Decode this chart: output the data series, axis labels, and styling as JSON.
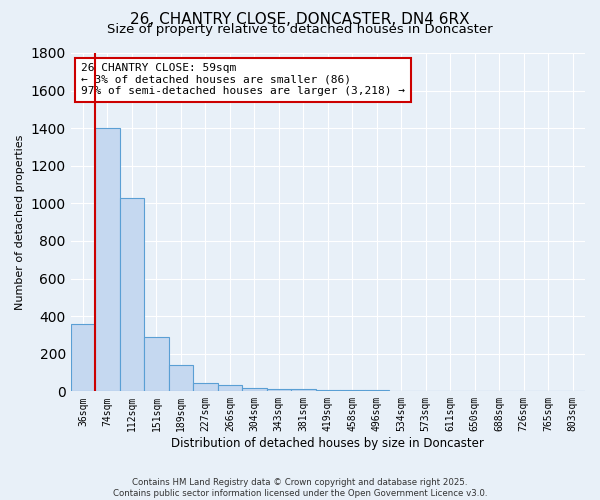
{
  "title": "26, CHANTRY CLOSE, DONCASTER, DN4 6RX",
  "subtitle": "Size of property relative to detached houses in Doncaster",
  "xlabel": "Distribution of detached houses by size in Doncaster",
  "ylabel": "Number of detached properties",
  "bar_values": [
    360,
    1400,
    1030,
    290,
    140,
    45,
    35,
    20,
    15,
    10,
    8,
    6,
    5,
    4,
    3,
    3,
    2,
    2,
    1,
    1,
    1
  ],
  "bar_labels": [
    "36sqm",
    "74sqm",
    "112sqm",
    "151sqm",
    "189sqm",
    "227sqm",
    "266sqm",
    "304sqm",
    "343sqm",
    "381sqm",
    "419sqm",
    "458sqm",
    "496sqm",
    "534sqm",
    "573sqm",
    "611sqm",
    "650sqm",
    "688sqm",
    "726sqm",
    "765sqm",
    "803sqm"
  ],
  "bar_color": "#c5d8f0",
  "bar_edge_color": "#5a9fd4",
  "background_color": "#e8f0f8",
  "grid_color": "#ffffff",
  "annotation_line1": "26 CHANTRY CLOSE: 59sqm",
  "annotation_line2": "← 3% of detached houses are smaller (86)",
  "annotation_line3": "97% of semi-detached houses are larger (3,218) →",
  "annotation_box_color": "#ffffff",
  "annotation_box_edge_color": "#cc0000",
  "red_line_x": 0.5,
  "ylim": [
    0,
    1800
  ],
  "yticks": [
    0,
    200,
    400,
    600,
    800,
    1000,
    1200,
    1400,
    1600,
    1800
  ],
  "footnote": "Contains HM Land Registry data © Crown copyright and database right 2025.\nContains public sector information licensed under the Open Government Licence v3.0.",
  "title_fontsize": 11,
  "subtitle_fontsize": 9.5,
  "annotation_fontsize": 8,
  "ylabel_fontsize": 8,
  "xlabel_fontsize": 8.5,
  "tick_fontsize": 7
}
